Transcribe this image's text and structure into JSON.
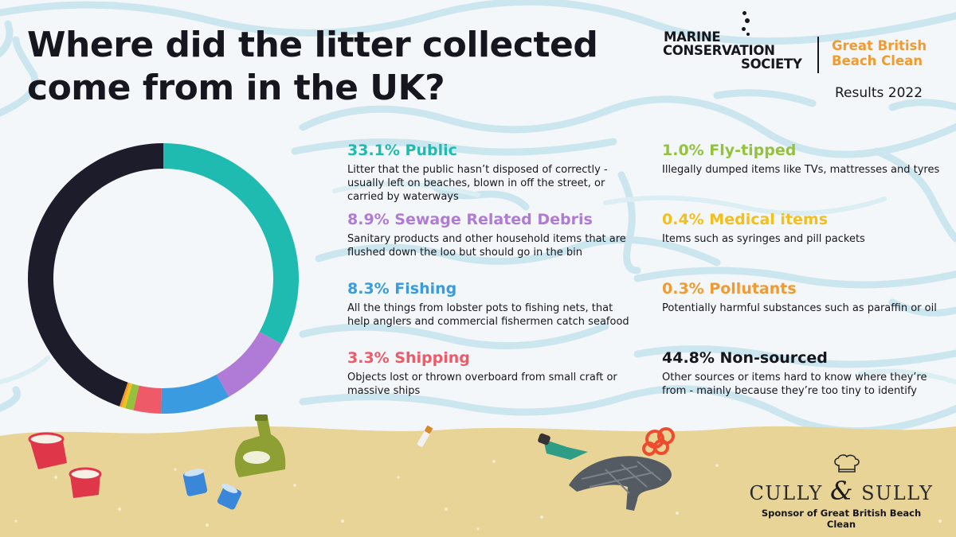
{
  "title": {
    "line1": "Where did the litter collected",
    "line2": "come from in the UK?"
  },
  "logo": {
    "mcs_line1": "MARINE",
    "mcs_line2": "CONSERVATION",
    "mcs_line3": "SOCIETY",
    "event_line1": "Great British",
    "event_line2": "Beach Clean",
    "results": "Results 2022"
  },
  "colors": {
    "public": "#1fbbb0",
    "sewage": "#b07bd6",
    "fishing": "#3a9be0",
    "shipping": "#ef5a68",
    "flytipped": "#94c23d",
    "medical": "#f2c01d",
    "pollutants": "#f29a2e",
    "nonsourced": "#1d1c2b",
    "ink": "#16161f",
    "sand": "#e9d497",
    "wave": "#c9e5ec"
  },
  "categories": [
    {
      "key": "public",
      "head": "33.1% Public",
      "desc": "Litter that the public hasn’t disposed of correctly - usually left on beaches, blown in off the street, or carried by waterways"
    },
    {
      "key": "sewage",
      "head": "8.9% Sewage Related Debris",
      "desc": "Sanitary products and other household items that are flushed down the loo but should go in the bin"
    },
    {
      "key": "fishing",
      "head": "8.3% Fishing",
      "desc": "All the things from lobster pots to fishing nets, that help anglers and commercial fishermen catch seafood"
    },
    {
      "key": "shipping",
      "head": "3.3% Shipping",
      "desc": "Objects lost or thrown overboard from small craft or massive ships"
    },
    {
      "key": "flytipped",
      "head": "1.0% Fly-tipped",
      "desc": "Illegally dumped items like TVs, mattresses and tyres"
    },
    {
      "key": "medical",
      "head": "0.4% Medical items",
      "desc": "Items such as syringes and pill packets"
    },
    {
      "key": "pollutants",
      "head": "0.3% Pollutants",
      "desc": "Potentially harmful substances such as paraffin or oil"
    },
    {
      "key": "nonsourced",
      "head": "44.8% Non-sourced",
      "desc": "Other sources or items hard to know where they’re from - mainly because they’re too tiny to identify"
    }
  ],
  "chart_data": {
    "type": "pie",
    "variant": "donut",
    "title": "Where did the litter collected come from in the UK?",
    "labels": [
      "Public",
      "Sewage Related Debris",
      "Fishing",
      "Shipping",
      "Fly-tipped",
      "Medical items",
      "Pollutants",
      "Non-sourced"
    ],
    "values": [
      33.1,
      8.9,
      8.3,
      3.3,
      1.0,
      0.4,
      0.3,
      44.8
    ],
    "unit": "%",
    "colors": [
      "#1fbbb0",
      "#b07bd6",
      "#3a9be0",
      "#ef5a68",
      "#94c23d",
      "#f2c01d",
      "#f29a2e",
      "#1d1c2b"
    ],
    "start_angle": "12 o'clock",
    "direction": "clockwise"
  },
  "sponsor": {
    "brand_left": "CULLY",
    "brand_amp": "&",
    "brand_right": "SULLY",
    "caption": "Sponsor of Great British Beach Clean"
  }
}
